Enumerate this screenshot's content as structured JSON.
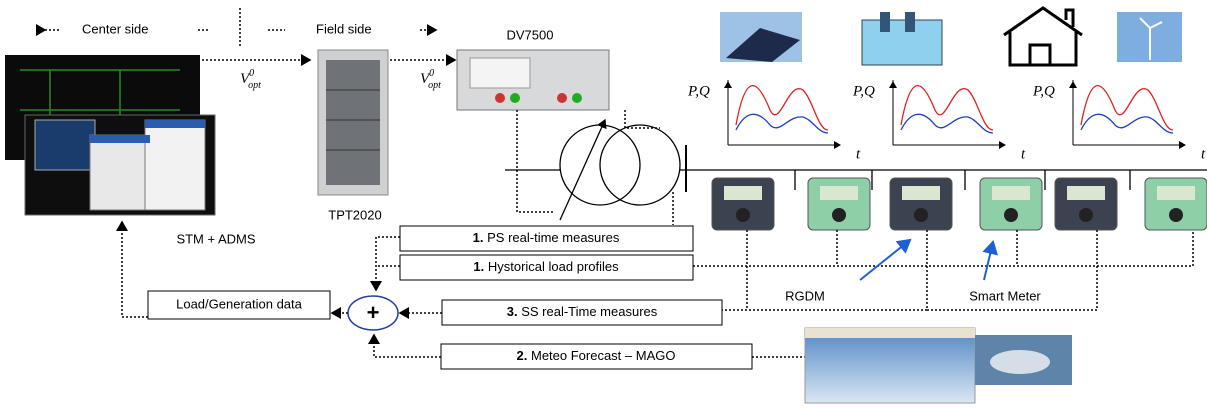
{
  "header": {
    "center_side": "Center side",
    "field_side": "Field side"
  },
  "devices": {
    "dv7500": "DV7500",
    "tpt2020": "TPT2020",
    "stm_adms": "STM + ADMS"
  },
  "signals": [
    {
      "base": "V",
      "sup": "0",
      "sub": "opt"
    },
    {
      "base": "V",
      "sup": "0",
      "sub": "opt"
    }
  ],
  "plots": [
    {
      "y_label": "P,Q",
      "x_label": "t"
    },
    {
      "y_label": "P,Q",
      "x_label": "t"
    },
    {
      "y_label": "P,Q",
      "x_label": "t"
    }
  ],
  "inputs": [
    {
      "number": "1.",
      "text": "PS real-time measures"
    },
    {
      "number": "1.",
      "text": "Hystorical load profiles"
    },
    {
      "number": "3.",
      "text": "SS real-Time measures"
    },
    {
      "number": "2.",
      "text": "Meteo Forecast – MAGO"
    }
  ],
  "aggregator": {
    "label": "Load/Generation data",
    "symbol": "+"
  },
  "meters": {
    "rgdm": "RGDM",
    "smart_meter": "Smart Meter"
  }
}
